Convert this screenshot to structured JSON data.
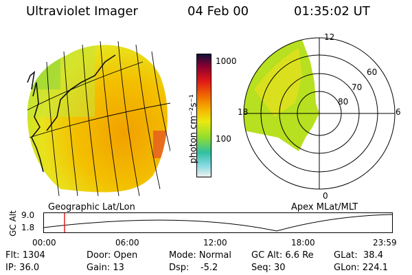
{
  "header": {
    "instrument": "Ultraviolet Imager",
    "date": "04 Feb 00",
    "time": "01:35:02 UT"
  },
  "left_panel": {
    "label": "Geographic Lat/Lon"
  },
  "right_panel": {
    "label": "Apex MLat/MLT",
    "mlt_labels": [
      "12",
      "18",
      "6",
      "0"
    ],
    "lat_labels": [
      "60",
      "70",
      "80"
    ]
  },
  "colorbar": {
    "unit_label": "photon cm⁻²s⁻¹",
    "ticks": [
      "1000",
      "100"
    ],
    "log_scale": true
  },
  "timeline": {
    "ylabel": "GC Alt",
    "y_ticks": [
      "9.0",
      "1.8"
    ],
    "x_ticks": [
      "00:00",
      "06:00",
      "12:00",
      "18:00",
      "23:59"
    ],
    "current_time_marker": "01:35"
  },
  "info": {
    "col1": [
      "Flt: 1304",
      "IP: 36.0"
    ],
    "col2": [
      "Door: Open",
      "Gain: 13"
    ],
    "col3": [
      "Mode: Normal",
      "Dsp:    -5.2"
    ],
    "col4": [
      "GC Alt: 6.6 Re",
      "Seq: 30"
    ],
    "col5": [
      "GLat:  38.4",
      "GLon: 224.1"
    ]
  }
}
